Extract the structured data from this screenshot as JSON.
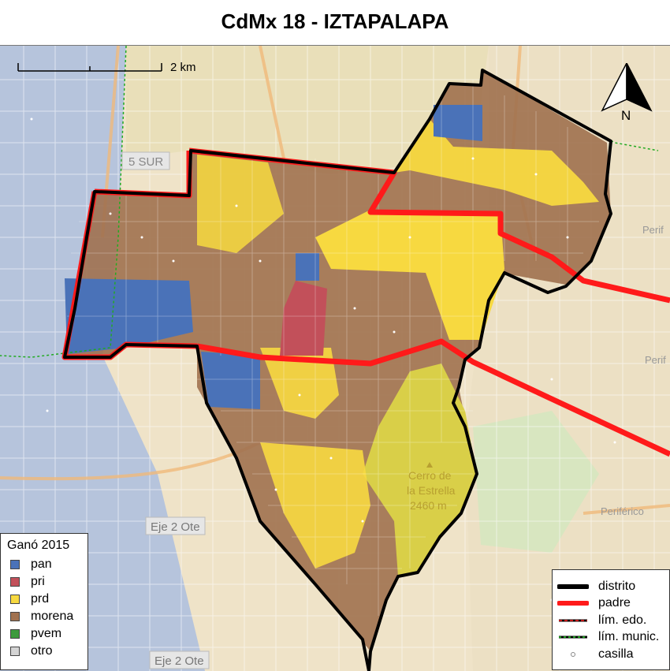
{
  "title": "CdMx 18 - IZTAPALAPA",
  "scale_label": "2 km",
  "north_label": "N",
  "map_labels": [
    {
      "text": "5 SUR"
    },
    {
      "text": "Cerro de"
    },
    {
      "text": "la Estrella"
    },
    {
      "text": "2460 m"
    },
    {
      "text": "Eje 2 Ote"
    },
    {
      "text": "Eje 2 Ote"
    },
    {
      "text": "Periférico"
    },
    {
      "text": "Perif"
    },
    {
      "text": "Perif"
    }
  ],
  "legend_party": {
    "title": "Ganó 2015",
    "items": [
      {
        "label": "pan",
        "color": "#4a72b8"
      },
      {
        "label": "pri",
        "color": "#c2505a"
      },
      {
        "label": "prd",
        "color": "#f7d940"
      },
      {
        "label": "morena",
        "color": "#a0714f"
      },
      {
        "label": "pvem",
        "color": "#3c9a3c"
      },
      {
        "label": "otro",
        "color": "#d4d4d4"
      }
    ]
  },
  "legend_lines": {
    "items": [
      {
        "label": "distrito",
        "key": "distrito"
      },
      {
        "label": "padre",
        "key": "padre"
      },
      {
        "label": "lím. edo.",
        "key": "edo"
      },
      {
        "label": "lím. munic.",
        "key": "munic"
      },
      {
        "label": "casilla",
        "key": "casilla"
      }
    ]
  },
  "colors": {
    "distrito": "#000000",
    "padre": "#ff1a1a",
    "municipal": "#22aa22",
    "pan": "#4a72b8",
    "pri": "#c2505a",
    "prd": "#f7d940",
    "morena": "#a0714f"
  }
}
